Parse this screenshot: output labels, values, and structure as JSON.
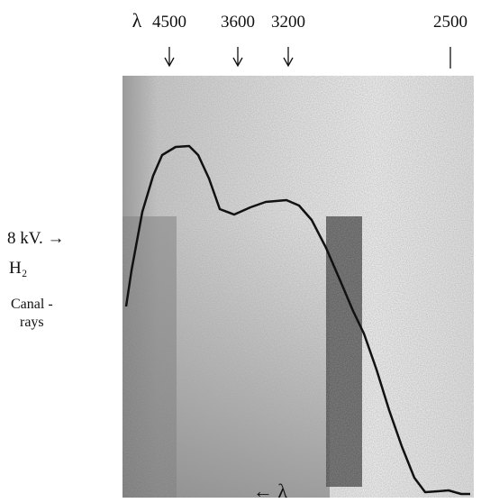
{
  "header": {
    "lambda": "λ",
    "markers": [
      "4500",
      "3600",
      "3200",
      "2500"
    ]
  },
  "labels": {
    "voltage": "8 kV. →",
    "ion": "H₂",
    "source_line1": "Canal -",
    "source_line2": "rays"
  },
  "footer": "← λ"
}
